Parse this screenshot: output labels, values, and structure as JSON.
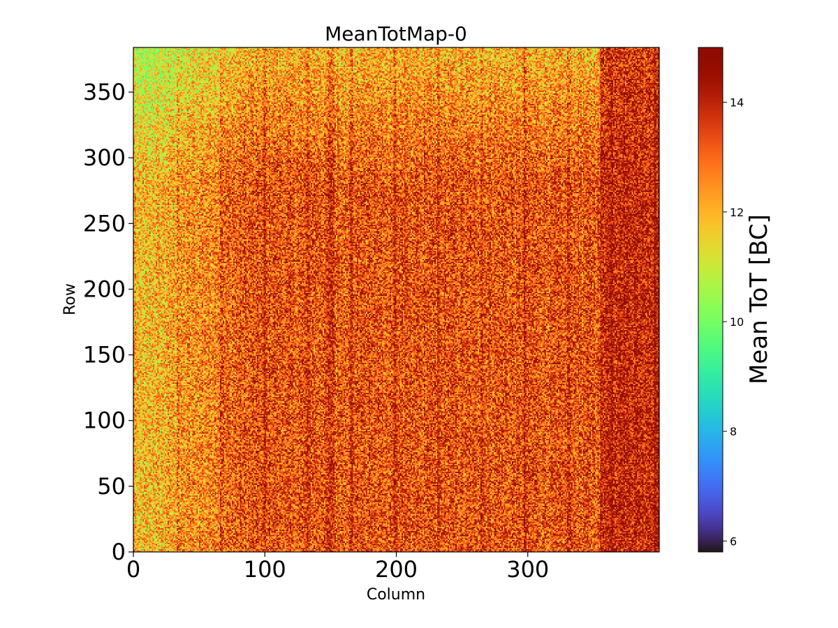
{
  "chart_data": {
    "type": "heatmap",
    "title": "MeanTotMap-0",
    "xlabel": "Column",
    "ylabel": "Row",
    "xlim": [
      0,
      400
    ],
    "ylim": [
      0,
      384
    ],
    "x_ticks": [
      0,
      100,
      200,
      300
    ],
    "y_ticks": [
      0,
      50,
      100,
      150,
      200,
      250,
      300,
      350
    ],
    "colorbar": {
      "label": "Mean ToT [BC]",
      "range": [
        5.8,
        15.0
      ],
      "ticks": [
        6,
        8,
        10,
        12,
        14
      ],
      "colormap": "turbo"
    },
    "grid": false,
    "description_values": {
      "typical_value": 13.5,
      "low_region": "left columns and top rows ~10-12",
      "high_region": "columns ~355-400 ~14.5-15"
    }
  }
}
